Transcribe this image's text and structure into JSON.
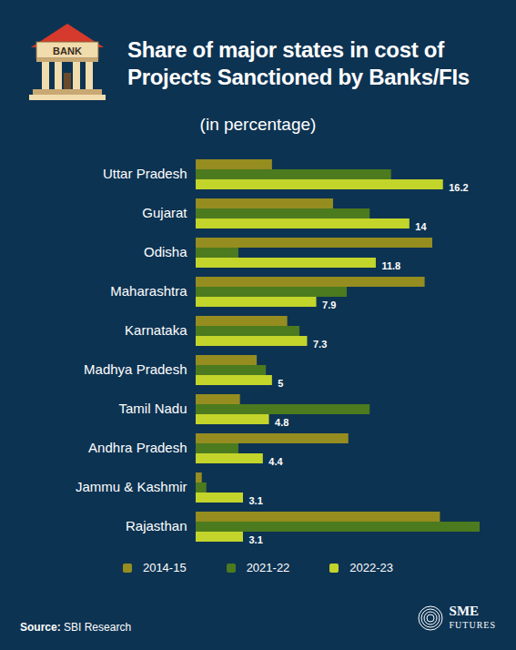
{
  "chart_data": {
    "type": "bar",
    "orientation": "horizontal",
    "title": "Share of major states in cost of Projects Sanctioned by Banks/FIs",
    "subtitle": "(in percentage)",
    "icon_label": "BANK",
    "source_label": "Source:",
    "source": "SBI Research",
    "branding": [
      "SME",
      "FUTURES"
    ],
    "categories": [
      "Uttar Pradesh",
      "Gujarat",
      "Odisha",
      "Maharashtra",
      "Karnataka",
      "Madhya Pradesh",
      "Tamil Nadu",
      "Andhra Pradesh",
      "Jammu & Kashmir",
      "Rajasthan"
    ],
    "series": [
      {
        "name": "2014-15",
        "color": "#958d20",
        "values": [
          5.0,
          9.0,
          15.5,
          15.0,
          6.0,
          4.0,
          2.9,
          10.0,
          0.4,
          16.0
        ]
      },
      {
        "name": "2021-22",
        "color": "#4c7a1e",
        "values": [
          12.8,
          11.4,
          2.8,
          9.9,
          6.8,
          4.6,
          11.4,
          2.8,
          0.7,
          18.6
        ]
      },
      {
        "name": "2022-23",
        "color": "#c3d42b",
        "values": [
          16.2,
          14,
          11.8,
          7.9,
          7.3,
          5,
          4.8,
          4.4,
          3.1,
          3.1
        ],
        "data_labels": true
      }
    ],
    "xlim": [
      0,
      18.6
    ],
    "tick_labels": "y",
    "grid": false,
    "legend": "bottom"
  }
}
